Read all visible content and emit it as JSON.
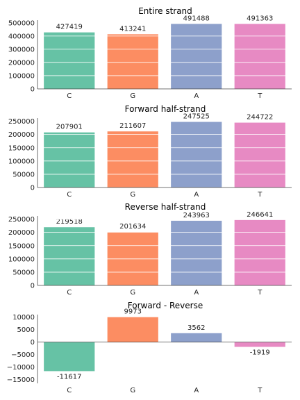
{
  "colors": {
    "C": "#66c2a5",
    "G": "#fc8d62",
    "A": "#8da0cb",
    "T": "#e78ac3"
  },
  "chart_data": [
    {
      "type": "bar",
      "title": "Entire strand",
      "categories": [
        "C",
        "G",
        "A",
        "T"
      ],
      "values": [
        427419,
        413241,
        491488,
        491363
      ],
      "ylim": [
        0,
        520000
      ],
      "yticks": [
        0,
        100000,
        200000,
        300000,
        400000,
        500000
      ],
      "grid": true
    },
    {
      "type": "bar",
      "title": "Forward half-strand",
      "categories": [
        "C",
        "G",
        "A",
        "T"
      ],
      "values": [
        207901,
        211607,
        247525,
        244722
      ],
      "ylim": [
        0,
        262000
      ],
      "yticks": [
        0,
        50000,
        100000,
        150000,
        200000,
        250000
      ],
      "grid": true
    },
    {
      "type": "bar",
      "title": "Reverse half-strand",
      "categories": [
        "C",
        "G",
        "A",
        "T"
      ],
      "values": [
        219518,
        201634,
        243963,
        246641
      ],
      "ylim": [
        0,
        262000
      ],
      "yticks": [
        0,
        50000,
        100000,
        150000,
        200000,
        250000
      ],
      "grid": true
    },
    {
      "type": "bar",
      "title": "Forward - Reverse",
      "categories": [
        "C",
        "G",
        "A",
        "T"
      ],
      "values": [
        -11617,
        9973,
        3562,
        -1919
      ],
      "ylim": [
        -16500,
        11000
      ],
      "yticks": [
        -15000,
        -10000,
        -5000,
        0,
        5000,
        10000
      ],
      "grid": false
    }
  ]
}
